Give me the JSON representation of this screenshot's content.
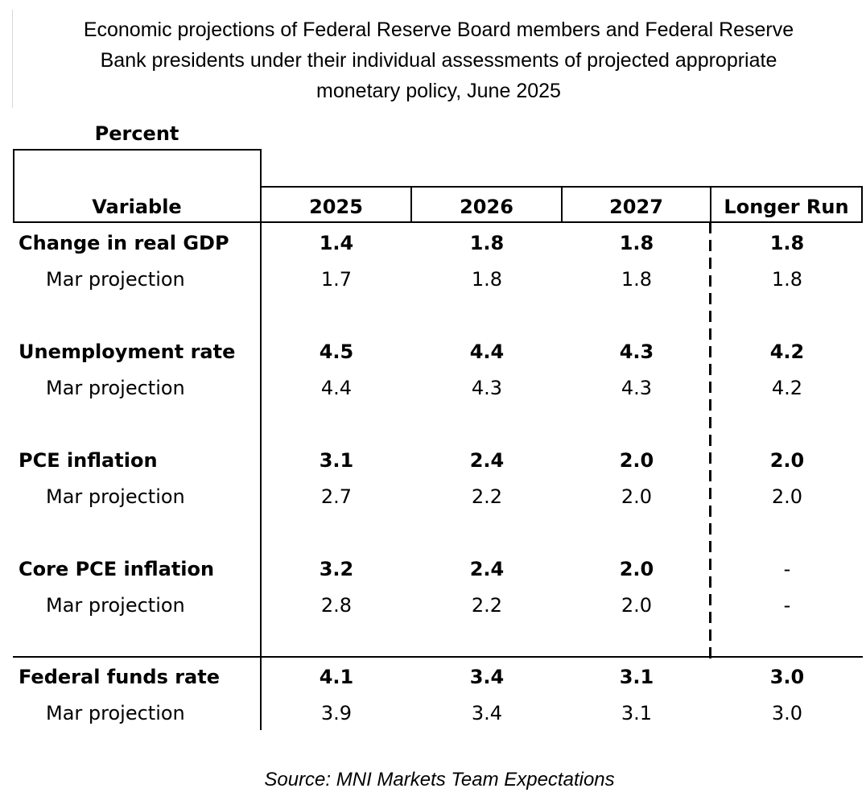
{
  "title_lines": [
    "Economic projections of Federal Reserve Board members and Federal Reserve",
    "Bank presidents under their individual assessments of projected appropriate",
    "monetary policy, June 2025"
  ],
  "unit_label": "Percent",
  "header": {
    "variable": "Variable",
    "col_2025": "2025",
    "col_2026": "2026",
    "col_2027": "2027",
    "col_longer_run": "Longer Run"
  },
  "rows": [
    {
      "label": "Change in real GDP",
      "values": [
        "1.4",
        "1.8",
        "1.8",
        "1.8"
      ],
      "prior_label": "Mar projection",
      "prior_values": [
        "1.7",
        "1.8",
        "1.8",
        "1.8"
      ]
    },
    {
      "label": "Unemployment rate",
      "values": [
        "4.5",
        "4.4",
        "4.3",
        "4.2"
      ],
      "prior_label": "Mar projection",
      "prior_values": [
        "4.4",
        "4.3",
        "4.3",
        "4.2"
      ]
    },
    {
      "label": "PCE inflation",
      "values": [
        "3.1",
        "2.4",
        "2.0",
        "2.0"
      ],
      "prior_label": "Mar projection",
      "prior_values": [
        "2.7",
        "2.2",
        "2.0",
        "2.0"
      ]
    },
    {
      "label": "Core PCE inflation",
      "values": [
        "3.2",
        "2.4",
        "2.0",
        "-"
      ],
      "prior_label": "Mar projection",
      "prior_values": [
        "2.8",
        "2.2",
        "2.0",
        "-"
      ]
    },
    {
      "label": "Federal funds rate",
      "values": [
        "4.1",
        "3.4",
        "3.1",
        "3.0"
      ],
      "prior_label": "Mar projection",
      "prior_values": [
        "3.9",
        "3.4",
        "3.1",
        "3.0"
      ]
    }
  ],
  "source": "Source: MNI Markets Team Expectations"
}
